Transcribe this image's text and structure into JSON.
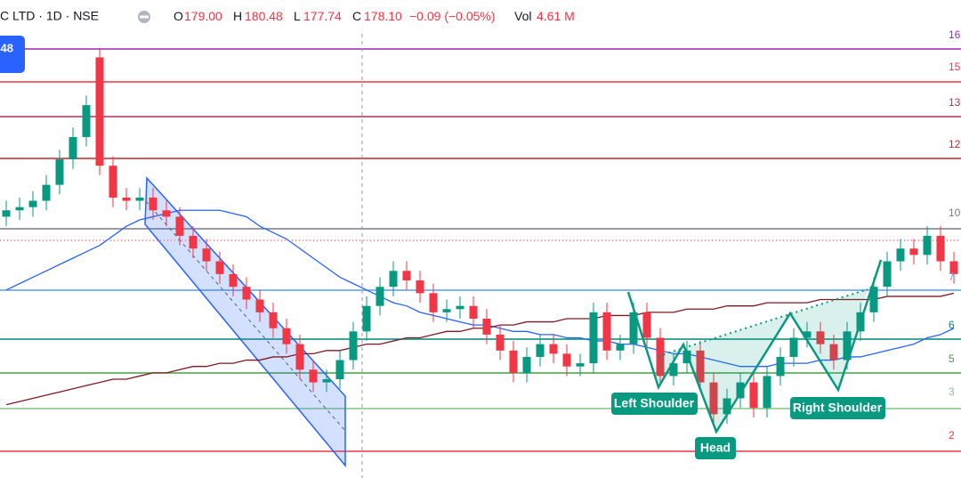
{
  "header": {
    "symbol": "C LTD · 1D · NSE",
    "o_label": "O",
    "open": "179.00",
    "h_label": "H",
    "high": "180.48",
    "l_label": "L",
    "low": "177.74",
    "c_label": "C",
    "close": "178.10",
    "change": "−0.09 (−0.05%)",
    "vol_label": "Vol",
    "volume": "4.61 M"
  },
  "badge": "48",
  "chart_data": {
    "type": "candlestick",
    "categories": [
      null,
      null,
      null,
      null,
      null,
      null,
      null,
      null,
      null,
      null,
      null,
      null,
      null,
      null,
      null,
      null,
      null,
      null,
      null,
      null,
      null,
      null,
      null,
      null,
      null,
      null,
      null,
      null,
      null,
      null,
      null,
      null,
      null,
      null,
      null,
      null,
      null,
      null,
      null,
      null,
      null,
      null,
      null,
      null,
      null,
      null,
      null,
      null,
      null,
      null,
      null,
      null,
      null,
      null,
      null,
      null,
      null,
      null,
      null,
      null,
      null,
      null,
      null,
      null,
      null,
      null,
      null,
      null,
      null,
      null,
      null,
      null
    ],
    "open": [
      102,
      104,
      105,
      107,
      112,
      120,
      127,
      152,
      118,
      108,
      107,
      108,
      104,
      102,
      96,
      92,
      88,
      84,
      80,
      76,
      72,
      67,
      62,
      54,
      50,
      51,
      57,
      66,
      74,
      80,
      85,
      82,
      78,
      72,
      73,
      74,
      70,
      65,
      60,
      53,
      58,
      62,
      59,
      55,
      56,
      72,
      60,
      62,
      72,
      64,
      52,
      56,
      60,
      50,
      40,
      45,
      50,
      42,
      52,
      58,
      64,
      66,
      62,
      57,
      66,
      72,
      80,
      88,
      92,
      90,
      96,
      88
    ],
    "high": [
      107,
      108,
      110,
      115,
      123,
      130,
      140,
      155,
      121,
      111,
      111,
      111,
      107,
      105,
      99,
      95,
      91,
      87,
      83,
      79,
      75,
      70,
      65,
      57,
      54,
      60,
      69,
      77,
      83,
      88,
      88,
      85,
      81,
      76,
      77,
      77,
      73,
      68,
      63,
      61,
      65,
      65,
      62,
      59,
      75,
      75,
      65,
      75,
      75,
      67,
      59,
      63,
      63,
      53,
      48,
      53,
      53,
      55,
      61,
      67,
      69,
      69,
      65,
      69,
      75,
      83,
      91,
      95,
      95,
      99,
      99,
      91
    ],
    "low": [
      99,
      101,
      102,
      104,
      109,
      117,
      124,
      115,
      105,
      104,
      104,
      101,
      99,
      93,
      89,
      85,
      81,
      77,
      73,
      69,
      64,
      59,
      51,
      47,
      47,
      48,
      54,
      63,
      71,
      77,
      79,
      75,
      69,
      69,
      70,
      67,
      62,
      57,
      50,
      50,
      55,
      56,
      52,
      52,
      53,
      57,
      57,
      59,
      61,
      49,
      49,
      53,
      47,
      37,
      37,
      42,
      39,
      39,
      49,
      55,
      61,
      59,
      54,
      54,
      63,
      69,
      77,
      85,
      87,
      87,
      85,
      81
    ],
    "close": [
      104,
      105,
      107,
      112,
      120,
      127,
      137,
      118,
      108,
      107,
      108,
      104,
      102,
      96,
      92,
      88,
      84,
      80,
      76,
      72,
      67,
      62,
      54,
      50,
      51,
      57,
      66,
      74,
      80,
      85,
      82,
      78,
      72,
      73,
      74,
      70,
      65,
      60,
      53,
      58,
      62,
      59,
      55,
      56,
      72,
      60,
      62,
      72,
      64,
      52,
      56,
      60,
      50,
      40,
      45,
      50,
      42,
      52,
      58,
      64,
      66,
      62,
      57,
      66,
      72,
      80,
      88,
      92,
      90,
      96,
      88,
      84
    ],
    "up_color": "#089981",
    "down_color": "#f23645",
    "ylim": [
      20,
      170
    ],
    "indicators": [
      {
        "color": "#2962ff",
        "values": [
          79,
          81,
          83,
          85,
          87,
          89,
          91,
          93,
          96,
          99,
          101,
          102,
          103,
          104,
          104,
          104,
          104,
          103,
          102,
          99,
          97,
          95,
          92,
          89,
          86,
          83,
          81,
          79,
          77,
          75,
          74,
          72,
          71,
          70,
          69,
          68,
          68,
          67,
          66,
          66,
          65,
          65,
          64,
          64,
          63,
          63,
          62,
          62,
          61,
          60,
          59,
          59,
          58,
          57,
          56,
          55,
          55,
          55,
          56,
          56,
          56,
          57,
          57,
          58,
          58,
          59,
          60,
          61,
          62,
          64,
          65,
          67
        ]
      },
      {
        "color": "#801922",
        "values": [
          43,
          44,
          45,
          46,
          47,
          48,
          49,
          50,
          51,
          51,
          52,
          53,
          53,
          54,
          55,
          55,
          56,
          56,
          57,
          57,
          58,
          58,
          59,
          59,
          60,
          60,
          61,
          62,
          62,
          63,
          64,
          64,
          65,
          66,
          66,
          67,
          67,
          68,
          68,
          69,
          69,
          69,
          70,
          70,
          70,
          71,
          71,
          71,
          72,
          72,
          72,
          73,
          73,
          73,
          74,
          74,
          74,
          75,
          75,
          75,
          75,
          76,
          76,
          76,
          76,
          76,
          77,
          77,
          77,
          77,
          77,
          78
        ]
      }
    ],
    "annotations": [
      "Left Shoulder",
      "Head",
      "Right Shoulder"
    ],
    "price_labels": [
      "16",
      "15",
      "13",
      "12",
      "10",
      "7",
      "6",
      "5",
      "3",
      "2"
    ]
  }
}
